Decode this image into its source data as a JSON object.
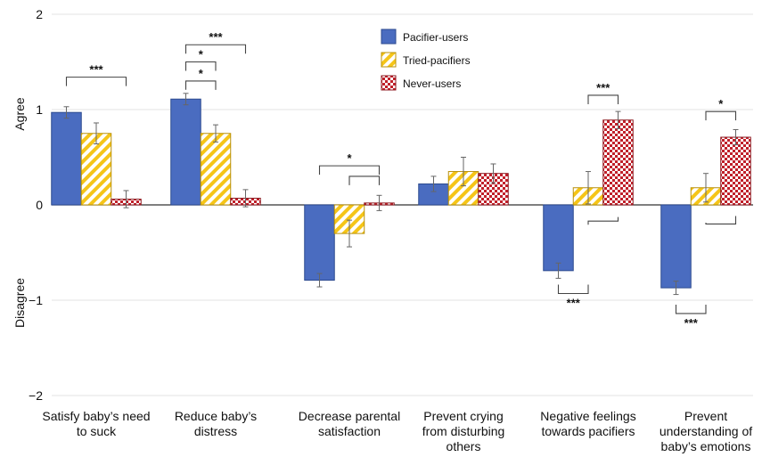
{
  "chart_data": {
    "type": "bar",
    "title": "",
    "xlabel": "",
    "ylabel_top": "Agree",
    "ylabel_bottom": "Disagree",
    "ylim": [
      -2,
      2
    ],
    "yticks": [
      2,
      1,
      0,
      -1,
      -2
    ],
    "ytick_labels": [
      "2",
      "1",
      "0",
      "−1",
      "−2"
    ],
    "grid": true,
    "legend_position": "top-center",
    "categories": [
      [
        "Satisfy baby’s need",
        "to suck"
      ],
      [
        "Reduce baby’s",
        "distress"
      ],
      [
        "Decrease parental",
        "satisfaction"
      ],
      [
        "Prevent crying",
        "from disturbing",
        "others"
      ],
      [
        "Negative feelings",
        "towards pacifiers"
      ],
      [
        "Prevent",
        "understanding of",
        "baby’s emotions"
      ]
    ],
    "series": [
      {
        "name": "Pacifier-users",
        "color": "#4a6cc0",
        "pattern": "solid",
        "values": [
          0.97,
          1.11,
          -0.79,
          0.22,
          -0.69,
          -0.87
        ],
        "errors": [
          0.06,
          0.06,
          0.07,
          0.08,
          0.08,
          0.07
        ]
      },
      {
        "name": "Tried-pacifiers",
        "color": "#f5c518",
        "pattern": "diagonal-stripes",
        "values": [
          0.75,
          0.75,
          -0.3,
          0.35,
          0.18,
          0.18
        ],
        "errors": [
          0.11,
          0.09,
          0.14,
          0.15,
          0.17,
          0.15
        ]
      },
      {
        "name": "Never-users",
        "color": "#c0202a",
        "pattern": "checker",
        "values": [
          0.06,
          0.07,
          0.02,
          0.33,
          0.89,
          0.71
        ],
        "errors": [
          0.09,
          0.09,
          0.08,
          0.1,
          0.09,
          0.08
        ]
      }
    ],
    "significance": [
      {
        "category": 0,
        "from_series": 0,
        "to_series": 2,
        "label": "***",
        "side": "above",
        "level": 1.34
      },
      {
        "category": 1,
        "from_series": 0,
        "to_series": 1,
        "label": "*",
        "side": "above",
        "level": 1.3
      },
      {
        "category": 1,
        "from_series": 0,
        "to_series": 1,
        "label": "*",
        "side": "above",
        "level": 1.5
      },
      {
        "category": 1,
        "from_series": 0,
        "to_series": 2,
        "label": "***",
        "side": "above",
        "level": 1.68
      },
      {
        "category": 2,
        "from_series": 0,
        "to_series": 2,
        "label": "*",
        "side": "above",
        "level": 0.41
      },
      {
        "category": 2,
        "from_series": 1,
        "to_series": 2,
        "label": "",
        "side": "above",
        "level": 0.3
      },
      {
        "category": 4,
        "from_series": 1,
        "to_series": 2,
        "label": "***",
        "side": "above",
        "level": 1.15
      },
      {
        "category": 4,
        "from_series": 0,
        "to_series": 1,
        "label": "***",
        "side": "below",
        "level": -0.93
      },
      {
        "category": 4,
        "from_series": 1,
        "to_series": 2,
        "label": "",
        "side": "below",
        "level": -0.17
      },
      {
        "category": 5,
        "from_series": 1,
        "to_series": 2,
        "label": "*",
        "side": "above",
        "level": 0.98
      },
      {
        "category": 5,
        "from_series": 0,
        "to_series": 1,
        "label": "***",
        "side": "below",
        "level": -1.14
      },
      {
        "category": 5,
        "from_series": 1,
        "to_series": 2,
        "label": "",
        "side": "below",
        "level": -0.2
      }
    ]
  }
}
